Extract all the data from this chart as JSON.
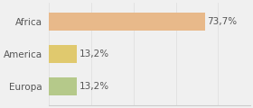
{
  "categories": [
    "Africa",
    "America",
    "Europa"
  ],
  "values": [
    73.7,
    13.2,
    13.2
  ],
  "labels": [
    "73,7%",
    "13,2%",
    "13,2%"
  ],
  "bar_colors": [
    "#e8b98a",
    "#e0c96e",
    "#b5c98a"
  ],
  "background_color": "#f0f0f0",
  "xlim": [
    0,
    95
  ],
  "bar_height": 0.55,
  "label_fontsize": 7.5,
  "category_fontsize": 7.5,
  "text_color": "#555555"
}
